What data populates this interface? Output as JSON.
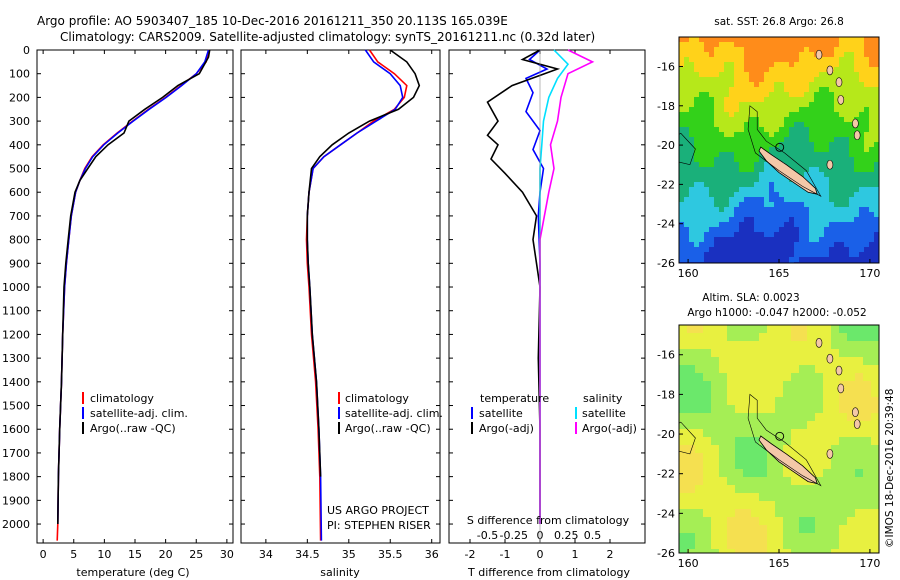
{
  "header": {
    "line1": "Argo profile: AO 5903407_185 10-Dec-2016 20161211_350 20.113S 165.039E",
    "line2": "Climatology: CARS2009. Satellite-adjusted climatology: synTS_20161211.nc (0.32d later)"
  },
  "credit": {
    "project": "US ARGO PROJECT",
    "pi": "PI: STEPHEN RISER",
    "watermark": "©IMOS 18-Dec-2016 20:39:48"
  },
  "chart_data": [
    {
      "type": "line",
      "id": "temperature",
      "xlabel": "temperature (deg C)",
      "ylabel": "",
      "xlim": [
        -1,
        31
      ],
      "ylim": [
        2080,
        0
      ],
      "xticks": [
        0,
        5,
        10,
        15,
        20,
        25,
        30
      ],
      "yticks": [
        0,
        100,
        200,
        300,
        400,
        500,
        600,
        700,
        800,
        900,
        1000,
        1100,
        1200,
        1300,
        1400,
        1500,
        1600,
        1700,
        1800,
        1900,
        2000
      ],
      "legend": [
        "climatology",
        "satellite-adj. clim.",
        "Argo(..raw -QC)"
      ],
      "legend_location": "lower-center",
      "series": [
        {
          "name": "climatology",
          "color": "#ff0000",
          "x": [
            27.1,
            26.6,
            25.0,
            22.5,
            20.0,
            17.2,
            14.6,
            12.1,
            9.8,
            8.0,
            6.8,
            6.0,
            5.3,
            4.6,
            4.2,
            3.8,
            3.5,
            3.2,
            3.0,
            2.7,
            2.5,
            2.4,
            2.3
          ],
          "y": [
            0,
            50,
            100,
            150,
            200,
            250,
            300,
            350,
            400,
            450,
            500,
            550,
            600,
            700,
            800,
            900,
            1000,
            1200,
            1400,
            1600,
            1800,
            2000,
            2070
          ]
        },
        {
          "name": "satellite-adj. clim.",
          "color": "#0000ff",
          "x": [
            27.0,
            26.4,
            25.0,
            22.6,
            20.1,
            17.3,
            14.7,
            12.2,
            9.9,
            8.1,
            6.9,
            6.0,
            5.3,
            4.6,
            4.2,
            3.8,
            3.5,
            3.2,
            3.0,
            2.7,
            2.5,
            2.4
          ],
          "y": [
            0,
            50,
            100,
            150,
            200,
            250,
            300,
            350,
            400,
            450,
            500,
            550,
            600,
            700,
            800,
            900,
            1000,
            1200,
            1400,
            1600,
            1800,
            2000
          ]
        },
        {
          "name": "Argo(..raw -QC)",
          "color": "#000000",
          "x": [
            27.2,
            27.0,
            25.5,
            22.0,
            19.5,
            16.6,
            14.0,
            13.2,
            10.6,
            8.6,
            7.3,
            6.0,
            5.2,
            4.5,
            4.1,
            3.7,
            3.4,
            3.2,
            3.0,
            2.7,
            2.5,
            2.4
          ],
          "y": [
            0,
            30,
            100,
            150,
            200,
            250,
            300,
            350,
            400,
            450,
            500,
            550,
            600,
            700,
            800,
            900,
            1000,
            1200,
            1400,
            1600,
            1800,
            2000
          ]
        }
      ]
    },
    {
      "type": "line",
      "id": "salinity",
      "xlabel": "salinity",
      "ylabel": "",
      "xlim": [
        33.7,
        36.1
      ],
      "ylim": [
        2080,
        0
      ],
      "xticks": [
        34,
        34.5,
        35,
        35.5,
        36
      ],
      "legend": [
        "climatology",
        "satellite-adj. clim.",
        "Argo(..raw -QC)"
      ],
      "legend_location": "lower-right",
      "series": [
        {
          "name": "climatology",
          "color": "#ff0000",
          "x": [
            35.25,
            35.35,
            35.55,
            35.7,
            35.67,
            35.55,
            35.3,
            35.1,
            34.9,
            34.7,
            34.57,
            34.52,
            34.5,
            34.49,
            34.5,
            34.52,
            34.55,
            34.6,
            34.63,
            34.65,
            34.66
          ],
          "y": [
            0,
            50,
            100,
            150,
            200,
            250,
            300,
            350,
            400,
            450,
            500,
            600,
            700,
            800,
            900,
            1000,
            1200,
            1400,
            1600,
            1800,
            2070
          ]
        },
        {
          "name": "satellite-adj. clim.",
          "color": "#0000ff",
          "x": [
            35.2,
            35.3,
            35.5,
            35.62,
            35.65,
            35.56,
            35.33,
            35.1,
            34.9,
            34.7,
            34.57,
            34.52,
            34.5,
            34.5,
            34.51,
            34.53,
            34.56,
            34.61,
            34.64,
            34.66,
            34.67
          ],
          "y": [
            0,
            50,
            100,
            150,
            200,
            250,
            300,
            350,
            400,
            450,
            500,
            600,
            700,
            800,
            900,
            1000,
            1200,
            1400,
            1600,
            1800,
            2070
          ]
        },
        {
          "name": "Argo(..raw -QC)",
          "color": "#000000",
          "x": [
            35.5,
            35.7,
            35.8,
            35.85,
            35.78,
            35.6,
            35.25,
            35.0,
            34.8,
            34.65,
            34.55,
            34.52,
            34.5,
            34.5,
            34.51,
            34.53,
            34.56,
            34.61,
            34.64,
            34.66
          ],
          "y": [
            0,
            50,
            100,
            150,
            200,
            250,
            300,
            350,
            400,
            450,
            500,
            600,
            700,
            800,
            900,
            1000,
            1200,
            1400,
            1600,
            1800
          ]
        }
      ]
    },
    {
      "type": "line",
      "id": "differences",
      "xlabel": "T difference from climatology",
      "xlabel_top": "S difference from climatology",
      "xlim": [
        -2.6,
        3.0
      ],
      "xticks": [
        -2,
        -1,
        0,
        1,
        2
      ],
      "x2ticks": [
        -0.5,
        -0.25,
        0,
        0.25,
        0.5
      ],
      "ylim": [
        2080,
        0
      ],
      "legend_headers": [
        "temperature",
        "salinity"
      ],
      "legend": [
        "satellite",
        "Argo(-adj)",
        "satellite",
        "Argo(-adj)"
      ],
      "legend_location": "lower-center",
      "series": [
        {
          "name": "satellite",
          "group": "temperature",
          "color": "#0000ff",
          "x": [
            0.0,
            -0.3,
            0.2,
            -0.4,
            -0.2,
            -0.4,
            0.0,
            -0.2,
            0.1,
            0.0,
            -0.05,
            0.0,
            0.0,
            0.0,
            0.0,
            0.0
          ],
          "y": [
            0,
            40,
            80,
            120,
            180,
            260,
            340,
            420,
            500,
            600,
            700,
            900,
            1100,
            1400,
            1700,
            2000
          ]
        },
        {
          "name": "Argo(-adj)",
          "group": "temperature",
          "color": "#000000",
          "x": [
            0.0,
            -0.5,
            0.5,
            -0.8,
            -1.5,
            -1.2,
            -1.5,
            -1.2,
            -1.4,
            -1.0,
            -0.5,
            -0.1,
            -0.2,
            -0.1,
            0.0,
            -0.05,
            0.0,
            0.0
          ],
          "y": [
            0,
            40,
            80,
            150,
            220,
            300,
            360,
            400,
            460,
            520,
            600,
            700,
            800,
            900,
            1000,
            1300,
            1600,
            2000
          ]
        },
        {
          "name": "satellite",
          "group": "salinity",
          "color": "#00e0ff",
          "x": [
            0.4,
            0.8,
            0.5,
            0.25,
            0.1,
            0.05,
            0.0,
            0.0,
            0.0,
            0.0,
            0.0
          ],
          "y": [
            0,
            60,
            120,
            200,
            300,
            400,
            500,
            700,
            1000,
            1500,
            2000
          ]
        },
        {
          "name": "Argo(-adj)",
          "group": "salinity",
          "color": "#ff00ff",
          "x": [
            0.8,
            1.5,
            0.8,
            0.6,
            0.5,
            0.3,
            0.4,
            0.25,
            0.0,
            0.0,
            0.0
          ],
          "y": [
            0,
            50,
            100,
            200,
            300,
            400,
            500,
            600,
            800,
            1200,
            2000
          ]
        }
      ]
    },
    {
      "type": "heatmap",
      "id": "sst-map",
      "title": "sat. SST: 26.8 Argo: 26.8",
      "xlim": [
        159.5,
        170.5
      ],
      "ylim": [
        -26,
        -14.5
      ],
      "xticks": [
        160,
        165,
        170
      ],
      "yticks": [
        -16,
        -18,
        -20,
        -22,
        -24,
        -26
      ],
      "argo_position": {
        "lat": -20.113,
        "lon": 165.039
      },
      "colorscale": [
        "#ff8c1a",
        "#ffd21a",
        "#b6e81a",
        "#33d11a",
        "#1ab07a",
        "#2ec8e0",
        "#1a60e8",
        "#1a30c0"
      ]
    },
    {
      "type": "heatmap",
      "id": "sla-map",
      "title": "Altim. SLA: 0.0023",
      "subtitle": "Argo h1000: -0.047 h2000: -0.052",
      "xlim": [
        159.5,
        170.5
      ],
      "ylim": [
        -26,
        -14.5
      ],
      "xticks": [
        160,
        165,
        170
      ],
      "yticks": [
        -16,
        -18,
        -20,
        -22,
        -24,
        -26
      ],
      "argo_position": {
        "lat": -20.113,
        "lon": 165.039
      },
      "colorscale": [
        "#6be86b",
        "#a5ee55",
        "#e8f040",
        "#f5e050"
      ]
    }
  ]
}
